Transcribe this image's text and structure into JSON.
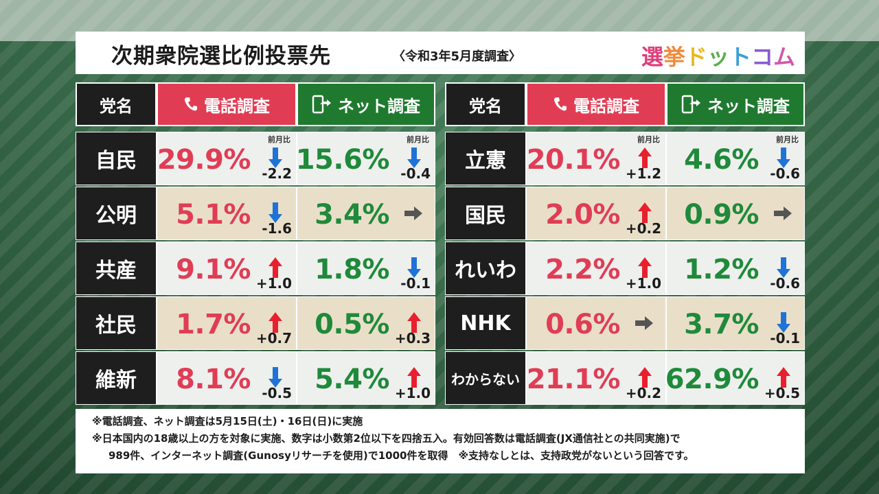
{
  "header": {
    "title": "次期衆院選比例投票先",
    "subtitle": "〈令和3年5月度調査〉",
    "logo": [
      "選",
      "挙",
      "ド",
      "ッ",
      "ト",
      "コ",
      "ム"
    ]
  },
  "columns": {
    "party": "党名",
    "phone": "電話調査",
    "net": "ネット調査"
  },
  "prev_label": "前月比",
  "left": [
    {
      "party": "自民",
      "phone": {
        "pct": "29.9%",
        "dir": "down",
        "delta": "-2.2"
      },
      "net": {
        "pct": "15.6%",
        "dir": "down",
        "delta": "-0.4"
      },
      "show_prev": true
    },
    {
      "party": "公明",
      "phone": {
        "pct": "5.1%",
        "dir": "down",
        "delta": "-1.6"
      },
      "net": {
        "pct": "3.4%",
        "dir": "flat",
        "delta": ""
      },
      "show_prev": false
    },
    {
      "party": "共産",
      "phone": {
        "pct": "9.1%",
        "dir": "up",
        "delta": "+1.0"
      },
      "net": {
        "pct": "1.8%",
        "dir": "down",
        "delta": "-0.1"
      },
      "show_prev": false
    },
    {
      "party": "社民",
      "phone": {
        "pct": "1.7%",
        "dir": "up",
        "delta": "+0.7"
      },
      "net": {
        "pct": "0.5%",
        "dir": "up",
        "delta": "+0.3"
      },
      "show_prev": false
    },
    {
      "party": "維新",
      "phone": {
        "pct": "8.1%",
        "dir": "down",
        "delta": "-0.5"
      },
      "net": {
        "pct": "5.4%",
        "dir": "up",
        "delta": "+1.0"
      },
      "show_prev": false
    }
  ],
  "right": [
    {
      "party": "立憲",
      "phone": {
        "pct": "20.1%",
        "dir": "up",
        "delta": "+1.2"
      },
      "net": {
        "pct": "4.6%",
        "dir": "down",
        "delta": "-0.6"
      },
      "show_prev": true
    },
    {
      "party": "国民",
      "phone": {
        "pct": "2.0%",
        "dir": "up",
        "delta": "+0.2"
      },
      "net": {
        "pct": "0.9%",
        "dir": "flat",
        "delta": ""
      },
      "show_prev": false
    },
    {
      "party": "れいわ",
      "phone": {
        "pct": "2.2%",
        "dir": "up",
        "delta": "+1.0"
      },
      "net": {
        "pct": "1.2%",
        "dir": "down",
        "delta": "-0.6"
      },
      "show_prev": false
    },
    {
      "party": "NHK",
      "phone": {
        "pct": "0.6%",
        "dir": "flat",
        "delta": ""
      },
      "net": {
        "pct": "3.7%",
        "dir": "down",
        "delta": "-0.1"
      },
      "show_prev": false
    },
    {
      "party": "わからない",
      "phone": {
        "pct": "21.1%",
        "dir": "up",
        "delta": "+0.2"
      },
      "net": {
        "pct": "62.9%",
        "dir": "up",
        "delta": "+0.5"
      },
      "show_prev": false,
      "small": true
    }
  ],
  "footer": {
    "line1": "※電話調査、ネット調査は5月15日(土)・16日(日)に実施",
    "line2": "※日本国内の18歳以上の方を対象に実施、数字は小数第2位以下を四捨五入。有効回答数は電話調査(JX通信社との共同実施)で",
    "line3": "989件、インターネット調査(Gunosyリサーチを使用)で1000件を取得　※支持なしとは、支持政党がないという回答です。"
  },
  "colors": {
    "up": "#e8202e",
    "down": "#1f73d6",
    "flat": "#555555",
    "logo": [
      "#e03d7a",
      "#f08a3a",
      "#e8b820",
      "#5ab04a",
      "#3aa0d8",
      "#8a5ad0",
      "#d05aa8"
    ]
  }
}
